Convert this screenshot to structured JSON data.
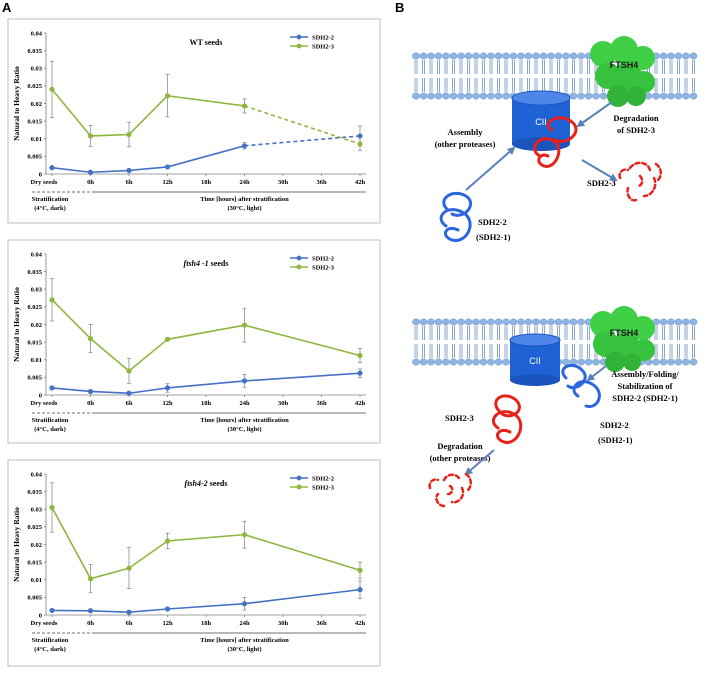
{
  "panel_labels": {
    "a": "A",
    "b": "B"
  },
  "chart_data": [
    {
      "type": "line",
      "title": "WT seeds",
      "ylabel": "Natural to Heavy Ratio",
      "xlabel": "Time [hours] after stratification (30°C, light)",
      "x_categories": [
        "Dry seeds",
        "0h",
        "6h",
        "12h",
        "18h",
        "24h",
        "30h",
        "36h",
        "42h"
      ],
      "yticks": [
        "0",
        "0.005",
        "0.01",
        "0.015",
        "0.02",
        "0.025",
        "0.03",
        "0.035",
        "0.04"
      ],
      "ylim": [
        0,
        0.04
      ],
      "stratification_label": [
        "Stratification",
        "(4°C, dark)"
      ],
      "time_label": [
        "Time [hours] after stratification",
        "(30°C, light)"
      ],
      "series": [
        {
          "name": "SDH2-2",
          "color": "#4472c4",
          "x": [
            0,
            1,
            2,
            3,
            5,
            8
          ],
          "y": [
            0.0018,
            0.0005,
            0.001,
            0.002,
            0.008,
            0.0108
          ],
          "err": [
            0.0003,
            0.0002,
            0.0003,
            0.0003,
            0.0009,
            0.0028
          ],
          "dashed_from": 4
        },
        {
          "name": "SDH2-3",
          "color": "#8fb73e",
          "x": [
            0,
            1,
            2,
            3,
            5,
            8
          ],
          "y": [
            0.024,
            0.0108,
            0.0112,
            0.0222,
            0.0193,
            0.0085
          ],
          "err": [
            0.008,
            0.003,
            0.0035,
            0.006,
            0.002,
            0.0018
          ],
          "dashed_from": 4
        }
      ]
    },
    {
      "type": "line",
      "title_italic": "ftsh4 -1",
      "title_rest": " seeds",
      "ylabel": "Natural to Heavy Ratio",
      "x_categories": [
        "Dry seeds",
        "0h",
        "6h",
        "12h",
        "18h",
        "24h",
        "30h",
        "36h",
        "42h"
      ],
      "yticks": [
        "0",
        "0.005",
        "0.01",
        "0.015",
        "0.02",
        "0.025",
        "0.03",
        "0.035",
        "0.04"
      ],
      "ylim": [
        0,
        0.04
      ],
      "stratification_label": [
        "Stratification",
        "(4°C, dark)"
      ],
      "time_label": [
        "Time [hours] after stratification",
        "(30°C, light)"
      ],
      "series": [
        {
          "name": "SDH2-2",
          "color": "#4472c4",
          "x": [
            0,
            1,
            2,
            3,
            5,
            8
          ],
          "y": [
            0.002,
            0.001,
            0.0005,
            0.002,
            0.004,
            0.0062
          ],
          "err": [
            0.0003,
            0.0003,
            0.0002,
            0.0012,
            0.0018,
            0.0012
          ]
        },
        {
          "name": "SDH2-3",
          "color": "#8fb73e",
          "x": [
            0,
            1,
            2,
            3,
            5,
            8
          ],
          "y": [
            0.027,
            0.016,
            0.0068,
            0.0158,
            0.0198,
            0.0112
          ],
          "err": [
            0.006,
            0.004,
            0.0035,
            0.0005,
            0.0048,
            0.002
          ]
        }
      ]
    },
    {
      "type": "line",
      "title_italic": "ftsh4-2",
      "title_rest": " seeds",
      "ylabel": "Natural to Heavy Ratio",
      "x_categories": [
        "Dry seeds",
        "0h",
        "6h",
        "12h",
        "18h",
        "24h",
        "30h",
        "36h",
        "42h"
      ],
      "yticks": [
        "0",
        "0.005",
        "0.01",
        "0.015",
        "0.02",
        "0.025",
        "0.03",
        "0.035",
        "0.04"
      ],
      "ylim": [
        0,
        0.04
      ],
      "stratification_label": [
        "Stratification",
        "(4°C, dark)"
      ],
      "time_label": [
        "Time [hours] after stratification",
        "(30°C, light)"
      ],
      "series": [
        {
          "name": "SDH2-2",
          "color": "#4472c4",
          "x": [
            0,
            1,
            2,
            3,
            5,
            8
          ],
          "y": [
            0.0013,
            0.0012,
            0.0008,
            0.0017,
            0.0032,
            0.0072
          ],
          "err": [
            0.0002,
            0.0002,
            0.0002,
            0.0002,
            0.0018,
            0.0025
          ]
        },
        {
          "name": "SDH2-3",
          "color": "#8fb73e",
          "x": [
            0,
            1,
            2,
            3,
            5,
            8
          ],
          "y": [
            0.0305,
            0.0103,
            0.0133,
            0.021,
            0.0228,
            0.0127
          ],
          "err": [
            0.007,
            0.004,
            0.0058,
            0.0022,
            0.0038,
            0.0023
          ]
        }
      ]
    }
  ],
  "diagram_top": {
    "cii": "CII",
    "ftsh4": "FTSH4",
    "degradation": [
      "Degradation",
      "of SDH2-3"
    ],
    "assembly": [
      "Assembly",
      "(other proteases)"
    ],
    "sdh23": "SDH2-3",
    "sdh22": [
      "SDH2-2",
      "(SDH2-1)"
    ]
  },
  "diagram_bottom": {
    "cii": "CII",
    "ftsh4": "FTSH4",
    "assembly": [
      "Assembly/Folding/",
      "Stabilization of",
      "SDH2-2 (SDH2-1)"
    ],
    "sdh23": "SDH2-3",
    "sdh22": [
      "SDH2-2",
      "(SDH2-1)"
    ],
    "degradation": [
      "Degradation",
      "(other proteases)"
    ]
  },
  "colors": {
    "membrane_head": "#8eb4e3",
    "membrane_tail": "#5b82b8",
    "cii": "#1f62d6",
    "ftsh4": "#3fcf45",
    "red": "#e8211a",
    "blue": "#2c67e0",
    "arrow": "#5b82b8"
  }
}
